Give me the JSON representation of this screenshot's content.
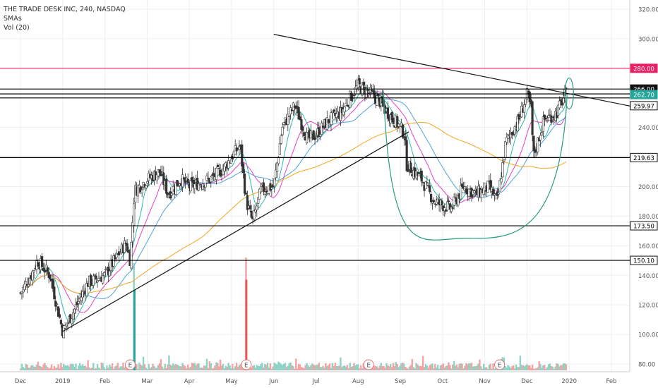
{
  "header": {
    "symbol_line": "THE TRADE DESK INC, 240, NASDAQ",
    "indicator_1": "SMAs",
    "indicator_2": "Vol (20)"
  },
  "chart_data": {
    "type": "candlestick",
    "ylim": [
      75,
      330
    ],
    "y_ticks": [
      "80.00",
      "100.00",
      "120.00",
      "140.00",
      "160.00",
      "180.00",
      "200.00",
      "220.00",
      "240.00",
      "300.00",
      "320.00"
    ],
    "x_ticks": [
      {
        "label": "Dec",
        "x": 0
      },
      {
        "label": "2019",
        "x": 1
      },
      {
        "label": "Feb",
        "x": 2
      },
      {
        "label": "Mar",
        "x": 3
      },
      {
        "label": "Apr",
        "x": 4
      },
      {
        "label": "May",
        "x": 5
      },
      {
        "label": "Jun",
        "x": 6
      },
      {
        "label": "Jul",
        "x": 7
      },
      {
        "label": "Aug",
        "x": 8
      },
      {
        "label": "Sep",
        "x": 9
      },
      {
        "label": "Oct",
        "x": 10
      },
      {
        "label": "Nov",
        "x": 11
      },
      {
        "label": "Dec",
        "x": 12
      },
      {
        "label": "2020",
        "x": 13
      },
      {
        "label": "Feb",
        "x": 14
      }
    ],
    "xlim": [
      -0.2,
      14.7
    ],
    "price_path": [
      [
        0,
        128
      ],
      [
        0.25,
        140
      ],
      [
        0.4,
        150
      ],
      [
        0.7,
        140
      ],
      [
        1.0,
        102
      ],
      [
        1.3,
        118
      ],
      [
        1.6,
        135
      ],
      [
        2.0,
        140
      ],
      [
        2.5,
        162
      ],
      [
        2.6,
        150
      ],
      [
        2.7,
        197
      ],
      [
        3.0,
        205
      ],
      [
        3.3,
        210
      ],
      [
        3.5,
        195
      ],
      [
        3.8,
        205
      ],
      [
        4.0,
        200
      ],
      [
        4.5,
        205
      ],
      [
        4.8,
        212
      ],
      [
        5.2,
        228
      ],
      [
        5.35,
        190
      ],
      [
        5.5,
        176
      ],
      [
        5.7,
        198
      ],
      [
        6.0,
        200
      ],
      [
        6.2,
        240
      ],
      [
        6.5,
        255
      ],
      [
        6.8,
        232
      ],
      [
        7.0,
        235
      ],
      [
        7.3,
        245
      ],
      [
        7.6,
        250
      ],
      [
        7.8,
        260
      ],
      [
        8.0,
        268
      ],
      [
        8.2,
        265
      ],
      [
        8.5,
        258
      ],
      [
        8.7,
        250
      ],
      [
        9.0,
        240
      ],
      [
        9.1,
        235
      ],
      [
        9.15,
        215
      ],
      [
        9.5,
        205
      ],
      [
        9.8,
        190
      ],
      [
        10.2,
        185
      ],
      [
        10.5,
        200
      ],
      [
        10.8,
        195
      ],
      [
        11.1,
        200
      ],
      [
        11.3,
        190
      ],
      [
        11.5,
        230
      ],
      [
        11.8,
        245
      ],
      [
        12.0,
        262
      ],
      [
        12.1,
        252
      ],
      [
        12.15,
        220
      ],
      [
        12.4,
        245
      ],
      [
        12.7,
        250
      ],
      [
        12.9,
        262
      ]
    ],
    "volume_spikes": [
      {
        "x": 2.7,
        "v": 38
      },
      {
        "x": 5.35,
        "v": 40
      }
    ],
    "sma_fast_color": "#2eb8a8",
    "sma_mid_color": "#e040c8",
    "sma_slow_color": "#4fa3e0",
    "sma_long_color": "#f5a623",
    "up_color": "#26a69a",
    "down_color": "#ef5350",
    "horizontal_levels": [
      {
        "value": 280,
        "label": "280.00",
        "line_color": "#e91e63",
        "tag_bg": "#e91e63",
        "tag_fg": "#ffffff"
      },
      {
        "value": 266,
        "label": "266.00",
        "line_color": "#000000",
        "tag_bg": "#111111",
        "tag_fg": "#ffffff"
      },
      {
        "value": 262.7,
        "label": "262.70",
        "line_color": "#000000",
        "tag_bg": "#26a69a",
        "tag_fg": "#ffffff"
      },
      {
        "value": 259.97,
        "label": "259.97",
        "line_color": "#000000",
        "tag_bg": "#ffffff",
        "tag_fg": "#000000"
      },
      {
        "value": 219.63,
        "label": "219.63",
        "line_color": "#000000",
        "tag_bg": "#ffffff",
        "tag_fg": "#000000"
      },
      {
        "value": 173.5,
        "label": "173.50",
        "line_color": "#000000",
        "tag_bg": "#ffffff",
        "tag_fg": "#000000"
      },
      {
        "value": 150.1,
        "label": "150.10",
        "line_color": "#000000",
        "tag_bg": "#ffffff",
        "tag_fg": "#000000"
      }
    ],
    "trendlines": [
      {
        "name": "resistance",
        "from": [
          6.0,
          303
        ],
        "to": [
          14.7,
          253
        ]
      },
      {
        "name": "support",
        "from": [
          1.0,
          102
        ],
        "to": [
          9.2,
          237
        ]
      }
    ],
    "cup": {
      "left": [
        8.6,
        265
      ],
      "right": [
        12.95,
        262
      ],
      "bottom": [
        10.5,
        165
      ]
    },
    "earnings_markers": [
      {
        "label": "E",
        "x": 2.6
      },
      {
        "label": "E",
        "x": 5.35
      },
      {
        "label": "E",
        "x": 8.25
      },
      {
        "label": "E",
        "x": 11.35
      }
    ]
  }
}
